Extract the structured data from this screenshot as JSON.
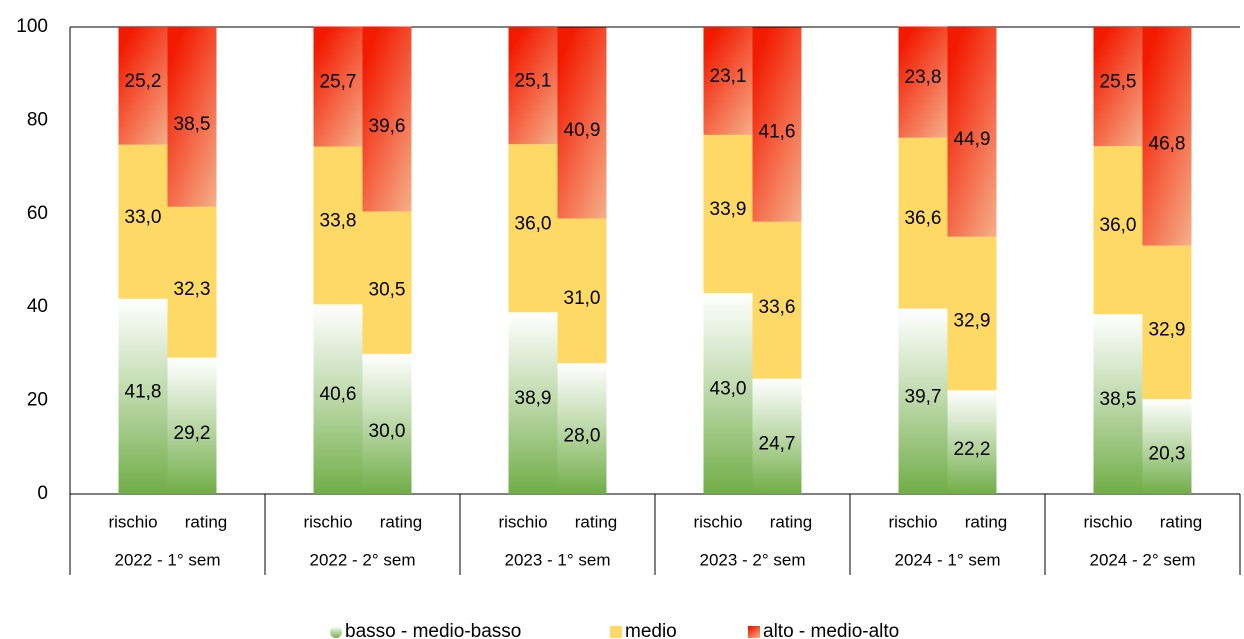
{
  "chart_data": {
    "type": "stacked_bar",
    "groups": [
      "2022 - 1° sem",
      "2022 - 2° sem",
      "2023 - 1° sem",
      "2023 - 2° sem",
      "2024 - 1° sem",
      "2024 - 2° sem"
    ],
    "categories": [
      "rischio",
      "rating",
      "rischio",
      "rating",
      "rischio",
      "rating",
      "rischio",
      "rating",
      "rischio",
      "rating",
      "rischio",
      "rating"
    ],
    "series": [
      {
        "name": "basso - medio-basso",
        "color": "#70ad47",
        "values": [
          41.8,
          29.2,
          40.6,
          30.0,
          38.9,
          28.0,
          43.0,
          24.7,
          39.7,
          22.2,
          38.5,
          20.3
        ],
        "value_labels": [
          "41,8",
          "29,2",
          "40,6",
          "30,0",
          "38,9",
          "28,0",
          "43,0",
          "24,7",
          "39,7",
          "22,2",
          "38,5",
          "20,3"
        ]
      },
      {
        "name": "medio",
        "color": "#ffd966",
        "values": [
          33.0,
          32.3,
          33.8,
          30.5,
          36.0,
          31.0,
          33.9,
          33.6,
          36.6,
          32.9,
          36.0,
          32.9
        ],
        "value_labels": [
          "33,0",
          "32,3",
          "33,8",
          "30,5",
          "36,0",
          "31,0",
          "33,9",
          "33,6",
          "36,6",
          "32,9",
          "36,0",
          "32,9"
        ]
      },
      {
        "name": "alto - medio-alto",
        "color": "#f21a00",
        "values": [
          25.2,
          38.5,
          25.7,
          39.6,
          25.1,
          40.9,
          23.1,
          41.6,
          23.8,
          44.9,
          25.5,
          46.8
        ],
        "value_labels": [
          "25,2",
          "38,5",
          "25,7",
          "39,6",
          "25,1",
          "40,9",
          "23,1",
          "41,6",
          "23,8",
          "44,9",
          "25,5",
          "46,8"
        ]
      }
    ],
    "ylim": [
      0,
      100
    ],
    "yticks": [
      0,
      20,
      40,
      60,
      80,
      100
    ],
    "grid": false,
    "legend": "bottom"
  }
}
